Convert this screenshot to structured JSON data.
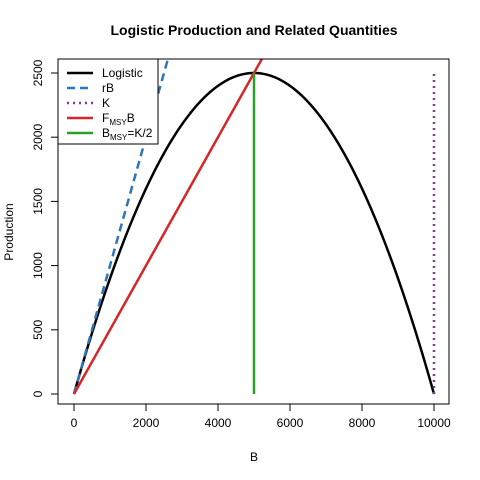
{
  "chart_data": {
    "type": "line",
    "title": "Logistic Production and Related Quantities",
    "xlabel": "B",
    "ylabel": "Production",
    "xlim": [
      0,
      10000
    ],
    "ylim": [
      0,
      2500
    ],
    "xticks": [
      0,
      2000,
      4000,
      6000,
      8000,
      10000
    ],
    "yticks": [
      0,
      500,
      1000,
      1500,
      2000,
      2500
    ],
    "xtick_labels": [
      "0",
      "2000",
      "4000",
      "6000",
      "8000",
      "10000"
    ],
    "ytick_labels": [
      "0",
      "500",
      "1000",
      "1500",
      "2000",
      "2500"
    ],
    "grid": false,
    "legend_position": "top-left",
    "parameters": {
      "r": 1.0,
      "K": 10000
    },
    "series": [
      {
        "name": "Logistic",
        "kind": "logistic",
        "color": "#000000",
        "dash": "solid"
      },
      {
        "name": "rB",
        "kind": "line_through_origin",
        "slope": 1.0,
        "color": "#2E75B6",
        "dash": "dashed"
      },
      {
        "name": "K",
        "kind": "vertical",
        "x": 10000,
        "y_range": [
          0,
          2500
        ],
        "color": "#7B3F8C",
        "dash": "dotted"
      },
      {
        "name": "FMSYB",
        "name_main": "F",
        "name_sub": "MSY",
        "name_tail": "B",
        "kind": "line_through_origin",
        "slope": 0.5,
        "color": "#D62728",
        "dash": "solid"
      },
      {
        "name": "BMSY=K/2",
        "name_main": "B",
        "name_sub": "MSY",
        "name_tail": "=K/2",
        "kind": "vertical",
        "x": 5000,
        "y_range": [
          0,
          2500
        ],
        "color": "#2CA02C",
        "dash": "solid"
      }
    ]
  }
}
